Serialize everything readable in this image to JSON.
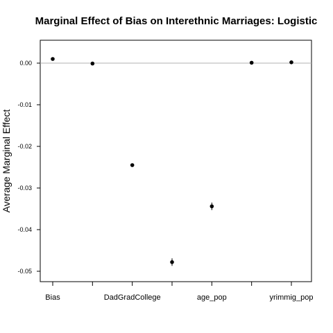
{
  "chart_data": {
    "type": "scatter",
    "title": "Marginal Effect of Bias on Interethnic Marriages: Logistic",
    "xlabel": "",
    "ylabel": "Average Marginal Effect",
    "categories": [
      "Bias",
      "",
      "DadGradCollege",
      "",
      "age_pop",
      "",
      "yrimmig_pop"
    ],
    "values": [
      0.001,
      -0.0001,
      -0.0245,
      -0.0478,
      -0.0344,
      0.0001,
      0.0002
    ],
    "error_low": [
      0.001,
      -0.0001,
      -0.0245,
      -0.0487,
      -0.0353,
      0.0001,
      0.0002
    ],
    "error_high": [
      0.001,
      -0.0001,
      -0.0245,
      -0.0469,
      -0.0335,
      0.0001,
      0.0002
    ],
    "yticks": [
      0.0,
      -0.01,
      -0.02,
      -0.03,
      -0.04,
      -0.05
    ],
    "ytick_labels": [
      "0.00",
      "-0.01",
      "-0.02",
      "-0.03",
      "-0.04",
      "-0.05"
    ],
    "ylim": [
      -0.0525,
      0.0055
    ],
    "reference_line": 0,
    "grid": false,
    "legend": "none"
  }
}
